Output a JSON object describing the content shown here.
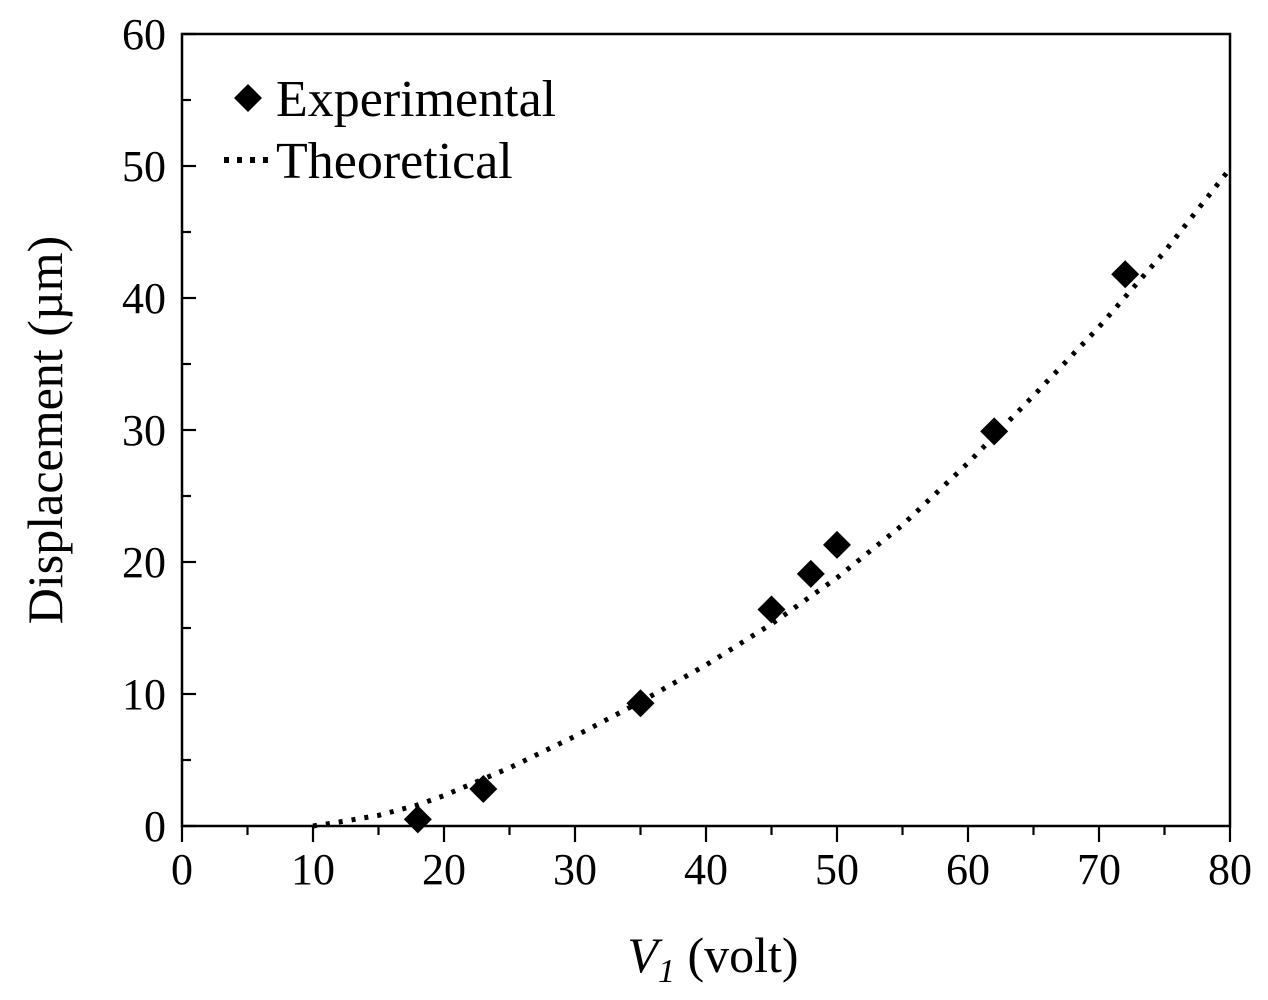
{
  "chart_data": {
    "type": "scatter",
    "title": "",
    "xlabel": {
      "var": "V",
      "sub": "1",
      "unit": " (volt)"
    },
    "ylabel": "Displacement (µm)",
    "xlim": [
      0,
      80
    ],
    "ylim": [
      0,
      60
    ],
    "x_ticks": [
      0,
      10,
      20,
      30,
      40,
      50,
      60,
      70,
      80
    ],
    "y_ticks": [
      0,
      10,
      20,
      30,
      40,
      50,
      60
    ],
    "grid": false,
    "legend": {
      "position": "top-left",
      "entries": [
        "Experimental",
        "Theoretical"
      ]
    },
    "series": [
      {
        "name": "Experimental",
        "marker": "diamond",
        "color": "#000000",
        "x": [
          18,
          23,
          35,
          45,
          48,
          50,
          62,
          72
        ],
        "y": [
          0.5,
          2.8,
          9.3,
          16.4,
          19.1,
          21.3,
          29.9,
          41.8
        ]
      },
      {
        "name": "Theoretical",
        "line_style": "dotted",
        "color": "#000000",
        "x": [
          10,
          12,
          15,
          18,
          20,
          25,
          30,
          35,
          40,
          45,
          50,
          55,
          60,
          65,
          70,
          75,
          80
        ],
        "y": [
          0,
          0.3,
          0.8,
          1.6,
          2.3,
          4.4,
          6.8,
          9.4,
          12.2,
          15.3,
          18.8,
          22.8,
          27.5,
          32.6,
          37.8,
          43.5,
          49.8
        ]
      }
    ]
  }
}
